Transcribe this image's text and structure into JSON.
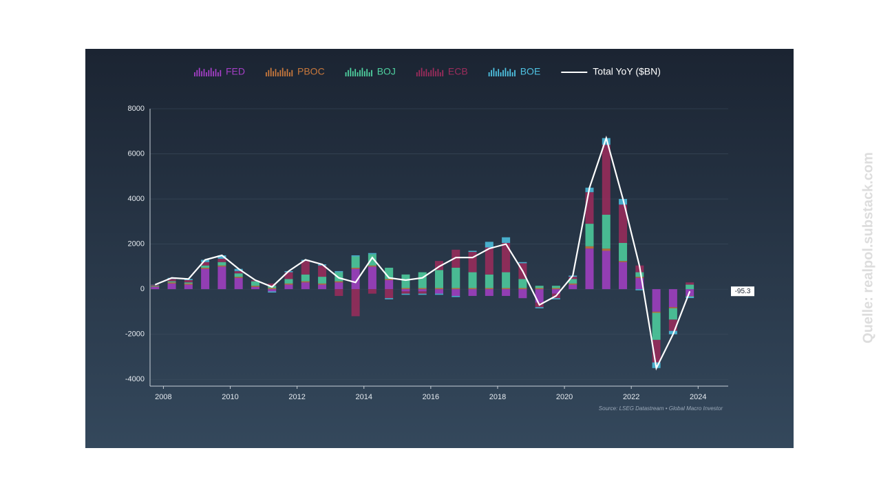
{
  "chart_data": {
    "type": "bar",
    "stacked": true,
    "source": "Source: LSEG Datastream • Global Macro Investor",
    "watermark": "Quelle: realpol.substack.com",
    "x": [
      2007.75,
      2008.25,
      2008.75,
      2009.25,
      2009.75,
      2010.25,
      2010.75,
      2011.25,
      2011.75,
      2012.25,
      2012.75,
      2013.25,
      2013.75,
      2014.25,
      2014.75,
      2015.25,
      2015.75,
      2016.25,
      2016.75,
      2017.25,
      2017.75,
      2018.25,
      2018.75,
      2019.25,
      2019.75,
      2020.25,
      2020.75,
      2021.25,
      2021.75,
      2022.25,
      2022.75,
      2023.25,
      2023.75
    ],
    "xlim": [
      2007.6,
      2024.9
    ],
    "xticks": [
      2008,
      2010,
      2012,
      2014,
      2016,
      2018,
      2020,
      2022,
      2024
    ],
    "ylim": [
      -4300,
      8000
    ],
    "yticks": [
      -4000,
      -2000,
      0,
      2000,
      4000,
      6000,
      8000
    ],
    "grid": true,
    "series": [
      {
        "name": "FED",
        "color": "#a43fc6",
        "values": [
          100,
          250,
          200,
          900,
          1000,
          500,
          100,
          -100,
          200,
          300,
          200,
          300,
          900,
          1000,
          400,
          -100,
          -100,
          -200,
          -300,
          -300,
          -300,
          -300,
          -400,
          -600,
          -200,
          200,
          1800,
          1700,
          1200,
          500,
          -1000,
          -800,
          -300
        ]
      },
      {
        "name": "PBOC",
        "color": "#c8783c",
        "values": [
          20,
          50,
          50,
          50,
          50,
          50,
          50,
          50,
          50,
          50,
          50,
          50,
          50,
          50,
          50,
          50,
          50,
          50,
          50,
          50,
          50,
          50,
          50,
          50,
          50,
          50,
          100,
          100,
          50,
          50,
          -50,
          -50,
          -20
        ]
      },
      {
        "name": "BOJ",
        "color": "#4fd1a0",
        "values": [
          30,
          50,
          50,
          100,
          150,
          150,
          200,
          100,
          200,
          300,
          300,
          400,
          500,
          500,
          500,
          600,
          700,
          800,
          900,
          700,
          600,
          700,
          400,
          100,
          100,
          200,
          1000,
          1500,
          800,
          200,
          -1200,
          -500,
          200
        ]
      },
      {
        "name": "ECB",
        "color": "#9c2c5c",
        "values": [
          40,
          100,
          100,
          150,
          150,
          100,
          50,
          100,
          300,
          600,
          500,
          -300,
          -1200,
          -200,
          -400,
          -100,
          -100,
          400,
          800,
          900,
          1200,
          1300,
          700,
          -200,
          -200,
          100,
          1400,
          3100,
          1700,
          300,
          -1000,
          -500,
          100
        ]
      },
      {
        "name": "BOE",
        "color": "#4fc3e3",
        "values": [
          10,
          50,
          50,
          100,
          150,
          100,
          0,
          -50,
          50,
          50,
          50,
          50,
          50,
          50,
          -50,
          -50,
          -50,
          -50,
          -50,
          50,
          250,
          250,
          50,
          -50,
          -50,
          50,
          200,
          300,
          250,
          -50,
          -250,
          -150,
          -75
        ]
      },
      {
        "name": "Total YoY ($BN)",
        "color": "#ffffff",
        "type": "line",
        "values": [
          200,
          500,
          450,
          1300,
          1500,
          900,
          400,
          100,
          800,
          1300,
          1100,
          500,
          300,
          1400,
          500,
          400,
          500,
          1000,
          1400,
          1400,
          1800,
          2000,
          800,
          -700,
          -300,
          600,
          4500,
          6700,
          4000,
          1000,
          -3500,
          -2000,
          -95.3
        ]
      }
    ]
  }
}
